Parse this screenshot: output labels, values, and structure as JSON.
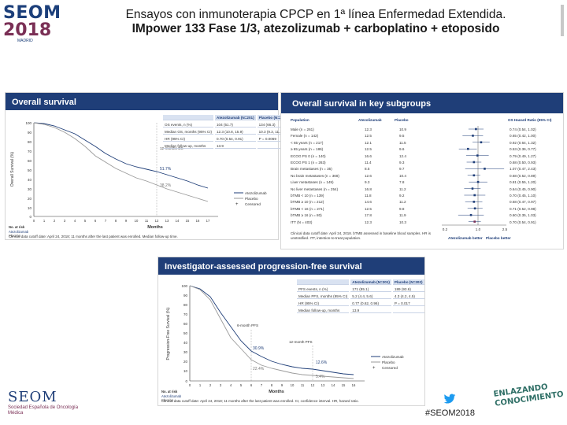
{
  "header": {
    "logo_name": "SEOM",
    "logo_year": "2018",
    "logo_city": "MADRID",
    "title_line1": "Ensayos con inmunoterapia  CPCP en 1ª línea Enfermedad Extendida.",
    "title_line2": "IMpower 133 Fase 1/3, atezolizumab + carboplatino + etoposido"
  },
  "os_panel": {
    "title": "Overall survival",
    "ylabel": "Overall Survival (%)",
    "xlabel": "Months",
    "table_headers": [
      "",
      "Atezolizumab (N=201)",
      "Placebo (N=202)"
    ],
    "table_rows": [
      [
        "OS events, n (%)",
        "104 (51.7)",
        "134 (66.3)"
      ],
      [
        "Median OS, months (95% CI)",
        "12.3 (10.8, 15.9)",
        "10.3 (9.3, 11.3)"
      ],
      [
        "HR (95% CI)",
        "0.70 (0.54, 0.91)",
        "P = 0.0069"
      ],
      [
        "Median follow-up, months",
        "13.9",
        ""
      ]
    ],
    "annotations": {
      "milestone": "12-months OS",
      "atezo_pct": "51.7%",
      "placebo_pct": "38.2%"
    },
    "legend": [
      "Atezolizumab",
      "Placebo",
      "Censored"
    ],
    "risk_label": "No. at risk",
    "risk_rows": [
      "Atezolizumab",
      "Placebo"
    ],
    "footnote": "Clinical data cutoff date: April 24, 2018; 11 months after the last patient was enrolled. Median follow-up time."
  },
  "sub_panel": {
    "title": "Overall survival in key subgroups",
    "col_headers": [
      "Population",
      "Atezolizumab",
      "Placebo",
      "OS Hazard Ratio (95% CI)"
    ],
    "rows": [
      [
        "Male (n = 261)",
        "12.3",
        "10.9",
        "0.74 (0.54, 1.02)"
      ],
      [
        "Female (n = 142)",
        "12.5",
        "9.5",
        "0.65 (0.42, 1.00)"
      ],
      [
        "< 65 years (n = 217)",
        "12.1",
        "11.5",
        "0.92 (0.64, 1.32)"
      ],
      [
        "≥ 65 years (n = 186)",
        "12.5",
        "9.6",
        "0.53 (0.36, 0.77)"
      ],
      [
        "ECOG PS 0 (n = 140)",
        "16.6",
        "12.4",
        "0.79 (0.49, 1.27)"
      ],
      [
        "ECOG PS 1 (n = 263)",
        "11.4",
        "9.3",
        "0.68 (0.50, 0.93)"
      ],
      [
        "Brain metastases (n = 35)",
        "8.5",
        "9.7",
        "1.07 (0.47, 2.43)"
      ],
      [
        "No brain metastases (n = 368)",
        "12.6",
        "10.4",
        "0.68 (0.52, 0.89)"
      ],
      [
        "Liver metastases (n = 149)",
        "9.3",
        "7.8",
        "0.81 (0.55, 1.20)"
      ],
      [
        "No liver metastases (n = 254)",
        "16.8",
        "11.2",
        "0.64 (0.45, 0.90)"
      ],
      [
        "bTMB < 10 (n = 139)",
        "11.8",
        "9.2",
        "0.70 (0.45, 1.10)"
      ],
      [
        "bTMB ≥ 10 (n = 212)",
        "14.6",
        "11.2",
        "0.68 (0.47, 0.97)"
      ],
      [
        "bTMB < 16 (n = 271)",
        "12.5",
        "9.8",
        "0.71 (0.52, 0.98)"
      ],
      [
        "bTMB ≥ 16 (n = 80)",
        "17.8",
        "11.9",
        "0.60 (0.35, 1.03)"
      ],
      [
        "ITT (N = 403)",
        "12.3",
        "10.3",
        "0.70 (0.54, 0.91)"
      ]
    ],
    "axis_ticks": [
      "0.2",
      "1.0",
      "2.5"
    ],
    "favors": [
      "Atezolizumab better",
      "Placebo better"
    ],
    "footnote": "Clinical data cutoff date: April 24, 2018. bTMB assessed in baseline blood samples. HR is unstratified. ITT, intention-to-treat population."
  },
  "pfs_panel": {
    "title": "Investigator-assessed progression-free survival",
    "ylabel": "Progression-Free Survival (%)",
    "xlabel": "Months",
    "table_headers": [
      "",
      "Atezolizumab (N=201)",
      "Placebo (N=202)"
    ],
    "table_rows": [
      [
        "PFS events, n (%)",
        "171 (85.1)",
        "189 (93.6)"
      ],
      [
        "Median PFS, months (95% CI)",
        "5.2 (4.4, 5.6)",
        "4.3 (4.2, 4.5)"
      ],
      [
        "HR (95% CI)",
        "0.77 (0.62, 0.96)",
        "P = 0.017"
      ],
      [
        "Median follow-up, months",
        "13.9",
        ""
      ]
    ],
    "annotations": {
      "m6": "6-month PFS",
      "m6_atezo": "30.9%",
      "m6_placebo": "22.4%",
      "m12": "12-month PFS",
      "m12_atezo": "12.6%",
      "m12_placebo": "5.4%"
    },
    "legend": [
      "Atezolizumab",
      "Placebo",
      "Censored"
    ],
    "risk_label": "No. at risk",
    "risk_rows": [
      "Atezolizumab",
      "Placebo"
    ],
    "footnote": "Clinical data cutoff date: April 24, 2018; 11 months after the last patient was enrolled. CI, confidence interval. HR, hazard ratio."
  },
  "footer": {
    "logo_name": "SEOM",
    "logo_sub": "Sociedad Española de Oncología Médica",
    "hashtag": "#SEOM2018",
    "brand_line1": "ENLAZANDO",
    "brand_line2": "CONOCIMIENTO"
  }
}
